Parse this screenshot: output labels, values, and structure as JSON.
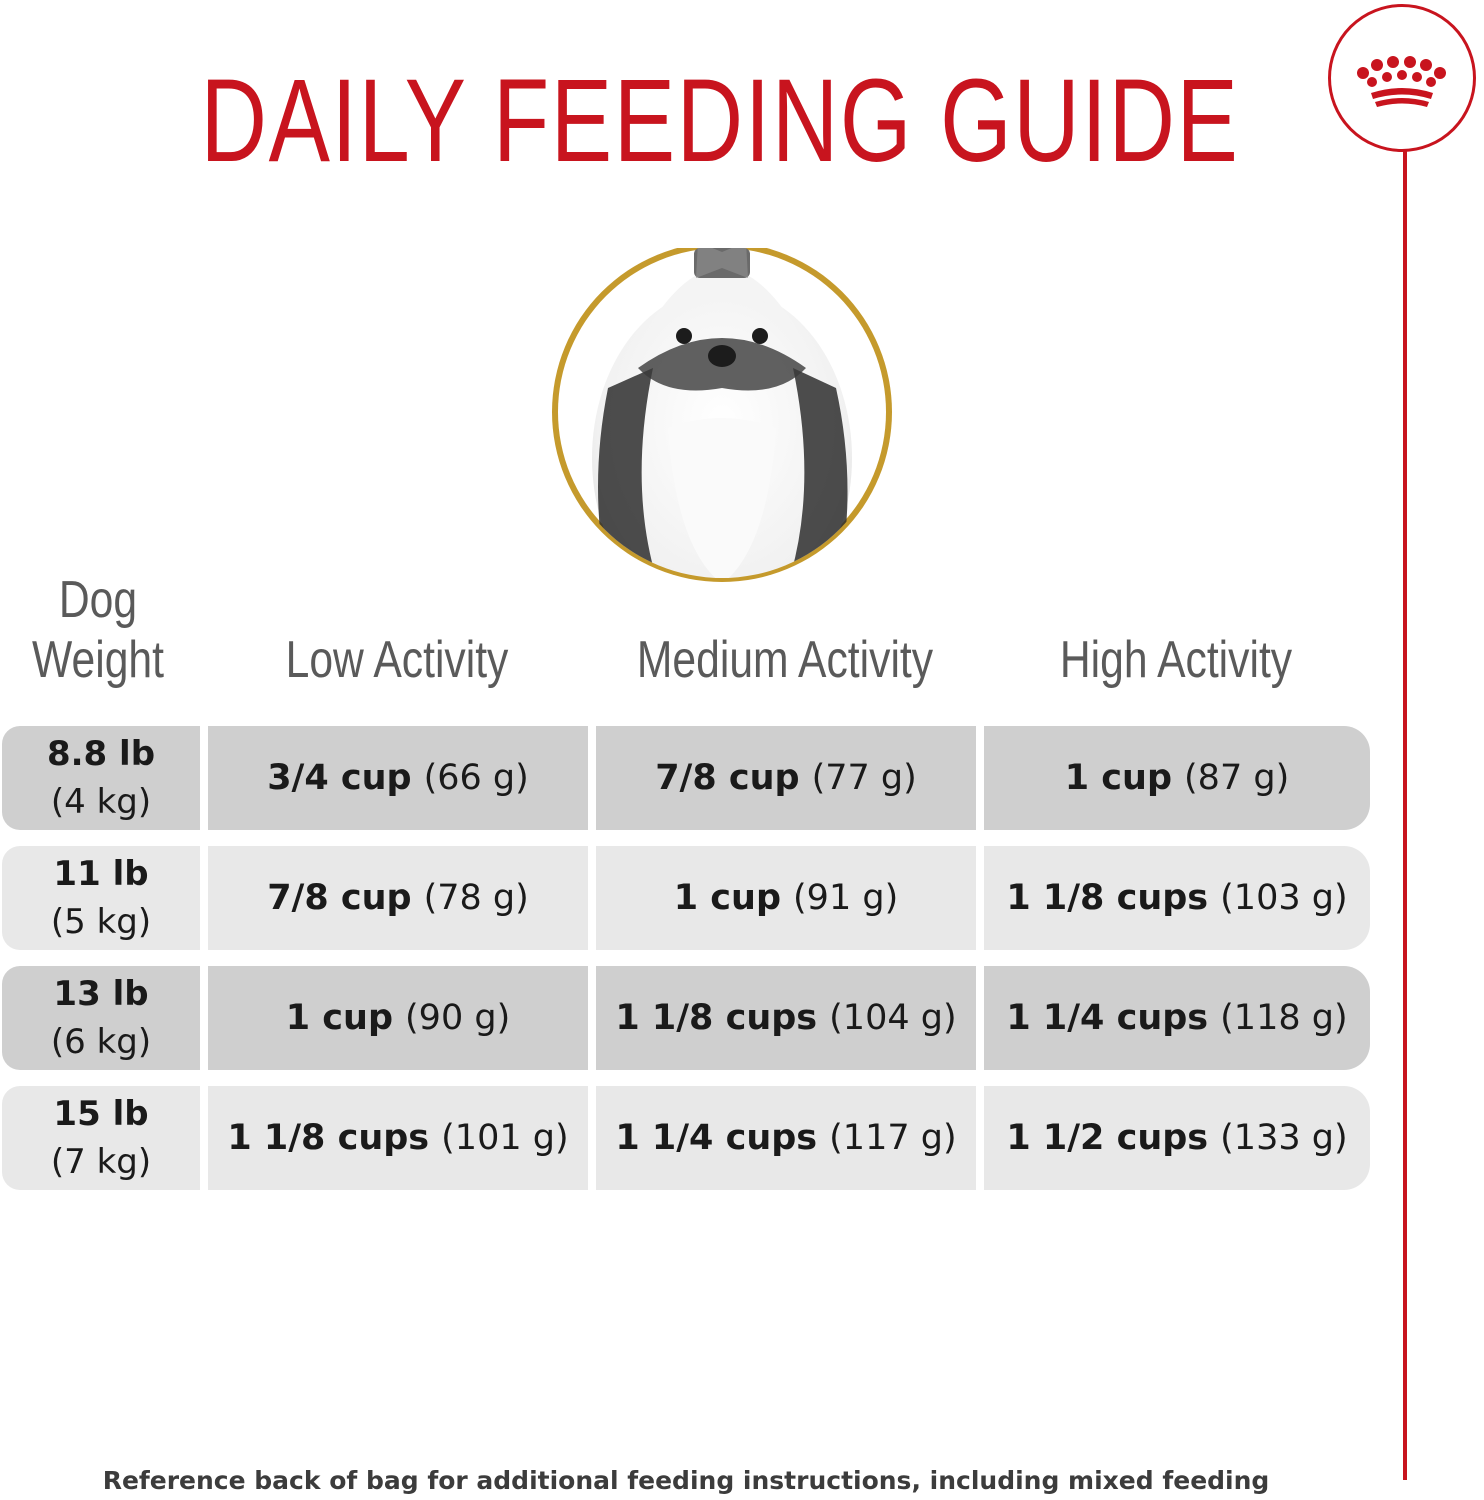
{
  "title": "DAILY FEEDING GUIDE",
  "brand": {
    "icon": "crown-icon",
    "accent_color": "#c8141e",
    "portrait_ring_color": "#c59a2c"
  },
  "table": {
    "headers": {
      "weight": "Dog Weight",
      "low": "Low Activity",
      "medium": "Medium Activity",
      "high": "High Activity"
    },
    "rows": [
      {
        "weight_lb": "8.8 lb",
        "weight_kg": "(4 kg)",
        "low_cup": "3/4 cup",
        "low_g": "(66 g)",
        "med_cup": "7/8 cup",
        "med_g": "(77 g)",
        "high_cup": "1 cup",
        "high_g": "(87 g)"
      },
      {
        "weight_lb": "11 lb",
        "weight_kg": "(5 kg)",
        "low_cup": "7/8 cup",
        "low_g": "(78 g)",
        "med_cup": "1 cup",
        "med_g": "(91 g)",
        "high_cup": "1 1/8 cups",
        "high_g": "(103 g)"
      },
      {
        "weight_lb": "13 lb",
        "weight_kg": "(6 kg)",
        "low_cup": "1 cup",
        "low_g": "(90 g)",
        "med_cup": "1 1/8 cups",
        "med_g": "(104 g)",
        "high_cup": "1 1/4 cups",
        "high_g": "(118 g)"
      },
      {
        "weight_lb": "15 lb",
        "weight_kg": "(7 kg)",
        "low_cup": "1 1/8 cups",
        "low_g": "(101 g)",
        "med_cup": "1 1/4 cups",
        "med_g": "(117 g)",
        "high_cup": "1 1/2 cups",
        "high_g": "(133 g)"
      }
    ]
  },
  "footnote": "Reference back of bag for additional feeding instructions, including mixed feeding"
}
